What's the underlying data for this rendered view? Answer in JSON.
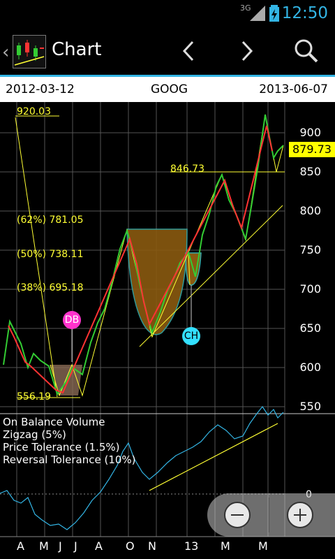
{
  "status": {
    "time": "12:50",
    "network": "3G"
  },
  "actionbar": {
    "title": "Chart",
    "prev_icon": "chevron-left-icon",
    "next_icon": "chevron-right-icon",
    "search_icon": "search-icon"
  },
  "info": {
    "start_date": "2012-03-12",
    "symbol": "GOOG",
    "end_date": "2013-06-07"
  },
  "price": {
    "last": "879.73",
    "y_ticks": [
      "900",
      "850",
      "800",
      "750",
      "700",
      "650",
      "600",
      "550"
    ],
    "fib_top": "920.03",
    "fib_62": "(62%) 781.05",
    "fib_50": "(50%) 738.11",
    "fib_38": "(38%) 695.18",
    "fib_bottom": "556.19",
    "resistance": "846.73",
    "pattern_db": "DB",
    "pattern_ch": "CH"
  },
  "indicator": {
    "name": "On Balance Volume",
    "zigzag": "Zigzag (5%)",
    "price_tol": "Price Tolerance (1.5%)",
    "rev_tol": "Reversal Tolerance (10%)",
    "zero": "0"
  },
  "x_ticks": [
    "A",
    "M",
    "J",
    "J",
    "A",
    "O",
    "N",
    "13",
    "M",
    "M"
  ],
  "colors": {
    "accent": "#33b5e5",
    "up": "#33cc33",
    "down": "#ff3333",
    "fib": "#ffff33",
    "obv": "#33b5e5"
  }
}
